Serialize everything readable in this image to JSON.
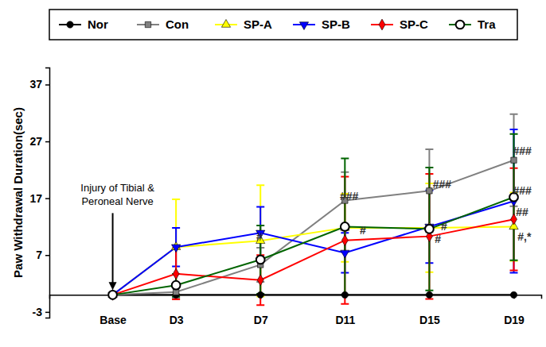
{
  "chart_data": {
    "type": "line",
    "y_label": "Paw Withdrawal Duration(sec)",
    "x": [
      0,
      3,
      7,
      11,
      15,
      19
    ],
    "xlim": [
      -3,
      20.3
    ],
    "xticks": [
      {
        "value": 0,
        "label": "Base"
      },
      {
        "value": 3,
        "label": "D3"
      },
      {
        "value": 7,
        "label": "D7"
      },
      {
        "value": 11,
        "label": "D11"
      },
      {
        "value": 15,
        "label": "D15"
      },
      {
        "value": 19,
        "label": "D19"
      }
    ],
    "ylim": [
      -4,
      40
    ],
    "yticks": [
      -3,
      7,
      17,
      27,
      37
    ],
    "legend": "top",
    "series": [
      {
        "name": "Nor",
        "color": "#000000",
        "marker": "circle",
        "values": [
          0,
          0,
          0,
          0,
          0,
          0
        ]
      },
      {
        "name": "Con",
        "color": "#808080",
        "marker": "square",
        "values": [
          0,
          0.5,
          5.3,
          16.6,
          18.3,
          23.7
        ],
        "errors": [
          0,
          1,
          3,
          5,
          7.3,
          8.1
        ]
      },
      {
        "name": "SP-A",
        "color": "#ffff00",
        "marker": "triangle",
        "values": [
          0,
          8.4,
          9.5,
          11.8,
          11.8,
          12.0
        ],
        "errors": [
          0,
          8.4,
          9.8,
          6,
          7.8,
          6
        ]
      },
      {
        "name": "SP-B",
        "color": "#0000ff",
        "marker": "triangle-down",
        "values": [
          0,
          8.4,
          10.9,
          7.4,
          12.0,
          16.5
        ],
        "errors": [
          0,
          3.4,
          4.6,
          3.5,
          6.4,
          12.6
        ]
      },
      {
        "name": "SP-C",
        "color": "#ff0000",
        "marker": "diamond",
        "values": [
          0,
          3.7,
          2.6,
          9.6,
          10.3,
          13.3
        ],
        "errors": [
          0,
          4.5,
          4.4,
          11.2,
          11,
          9
        ]
      },
      {
        "name": "Tra",
        "color": "#006400",
        "marker": "open-circle",
        "values": [
          0,
          1.7,
          6.2,
          12.0,
          11.6,
          17.2
        ],
        "errors": [
          0,
          2,
          6,
          12,
          10.8,
          11.1
        ]
      }
    ],
    "annotations": [
      {
        "text": "#",
        "x": 6.95,
        "y": 10.2
      },
      {
        "text": "###",
        "x": 11.2,
        "y": 17.3
      },
      {
        "text": "#",
        "x": 11.85,
        "y": 11.4
      },
      {
        "text": "###",
        "x": 15.6,
        "y": 19.4
      },
      {
        "text": "#",
        "x": 15.7,
        "y": 12.1
      },
      {
        "text": "#",
        "x": 15.4,
        "y": 9.8
      },
      {
        "text": "###",
        "x": 19.4,
        "y": 25.3
      },
      {
        "text": "###",
        "x": 19.4,
        "y": 18.3
      },
      {
        "text": "##",
        "x": 19.4,
        "y": 14.6
      },
      {
        "text": "#,*",
        "x": 19.5,
        "y": 10.2
      }
    ],
    "arrow_note": {
      "lines": [
        "Injury of Tibial &",
        "Peroneal Nerve"
      ],
      "x": 0,
      "y": 0
    }
  }
}
